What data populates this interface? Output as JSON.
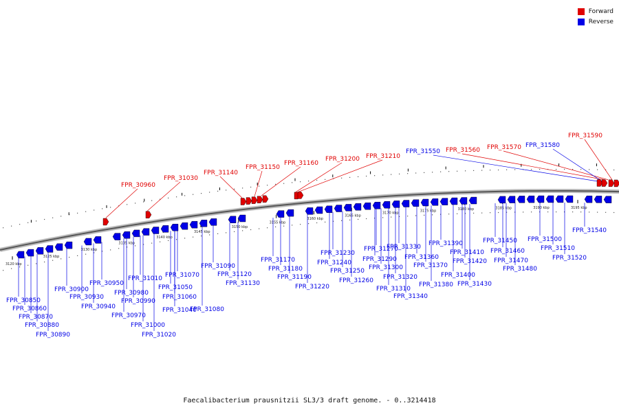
{
  "caption": "Faecalibacterium prausnitzii SL3/3 draft genome. - 0..3214418",
  "legend": {
    "forward": {
      "label": "Forward",
      "color": "#e00000"
    },
    "reverse": {
      "label": "Reverse",
      "color": "#0000e6"
    }
  },
  "track": {
    "start_kbp": 3120,
    "end_kbp": 3195,
    "major_tick_labels": [
      "3120 kbp",
      "3125 kbp",
      "3130 kbp",
      "3135 kbp",
      "3140 kbp",
      "3145 kbp",
      "3150 kbp",
      "3155 kbp",
      "3160 kbp",
      "3165 kbp",
      "3170 kbp",
      "3175 kbp",
      "3180 kbp",
      "3185 kbp",
      "3190 kbp",
      "3195 kbp"
    ]
  },
  "forward_genes": [
    "FPR_30960",
    "FPR_31030",
    "FPR_31140",
    "FPR_31150",
    "FPR_31160",
    "FPR_31200",
    "FPR_31210",
    "FPR_31560",
    "FPR_31570",
    "FPR_31590"
  ],
  "reverse_genes": [
    "FPR_30850",
    "FPR_30860",
    "FPR_30870",
    "FPR_30880",
    "FPR_30890",
    "FPR_30900",
    "FPR_30930",
    "FPR_30940",
    "FPR_30950",
    "FPR_30970",
    "FPR_30980",
    "FPR_30990",
    "FPR_31000",
    "FPR_31010",
    "FPR_31020",
    "FPR_31040",
    "FPR_31050",
    "FPR_31060",
    "FPR_31070",
    "FPR_31080",
    "FPR_31090",
    "FPR_31120",
    "FPR_31130",
    "FPR_31170",
    "FPR_31180",
    "FPR_31190",
    "FPR_31220",
    "FPR_31230",
    "FPR_31240",
    "FPR_31250",
    "FPR_31260",
    "FPR_31270",
    "FPR_31290",
    "FPR_31300",
    "FPR_31310",
    "FPR_31320",
    "FPR_31330",
    "FPR_31340",
    "FPR_31360",
    "FPR_31370",
    "FPR_31380",
    "FPR_31390",
    "FPR_31400",
    "FPR_31410",
    "FPR_31420",
    "FPR_31430",
    "FPR_31450",
    "FPR_31460",
    "FPR_31470",
    "FPR_31480",
    "FPR_31500",
    "FPR_31510",
    "FPR_31520",
    "FPR_31540",
    "FPR_31550",
    "FPR_31580"
  ]
}
